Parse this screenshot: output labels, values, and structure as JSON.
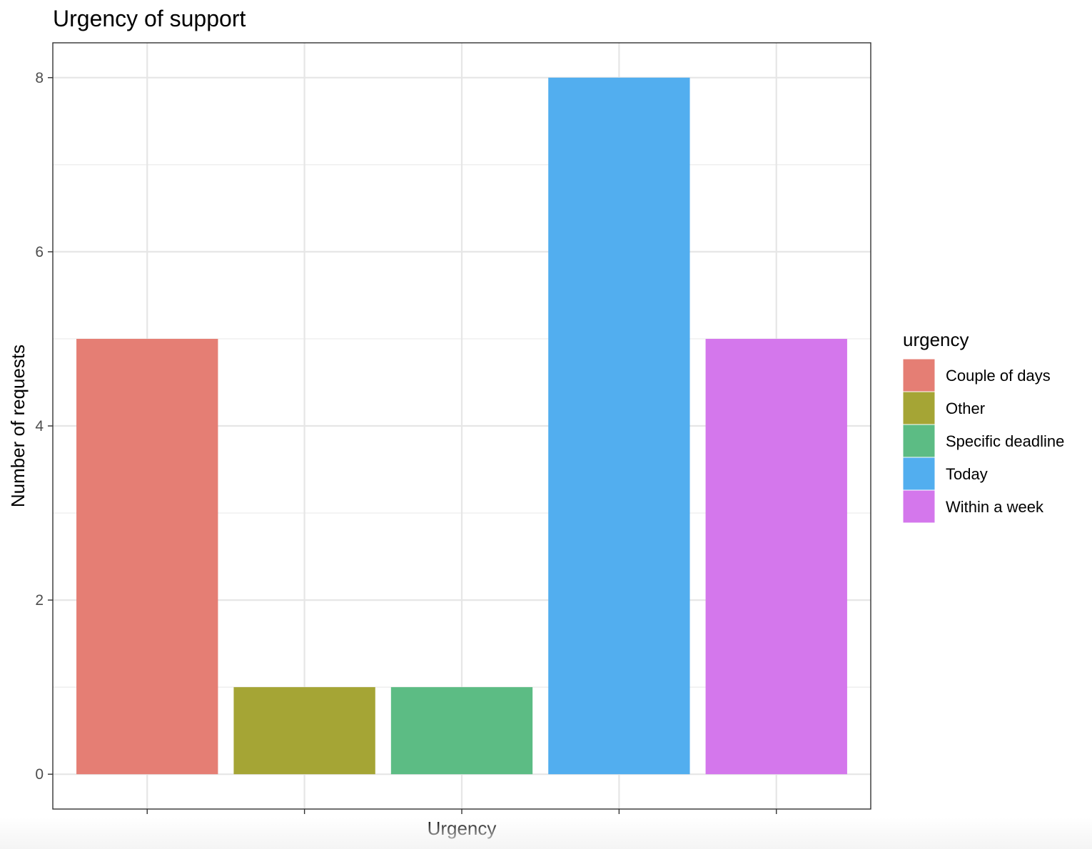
{
  "chart_data": {
    "type": "bar",
    "title": "Urgency of support",
    "xlabel": "Urgency",
    "ylabel": "Number of requests",
    "categories": [
      "Couple of days",
      "Other",
      "Specific deadline",
      "Today",
      "Within a week"
    ],
    "values": [
      5,
      1,
      1,
      8,
      5
    ],
    "colors": [
      "#E57E74",
      "#A5A535",
      "#5CBC84",
      "#52AEEF",
      "#D477EC"
    ],
    "ylim": [
      -0.4,
      8.4
    ],
    "yticks": [
      0,
      2,
      4,
      6,
      8
    ],
    "show_x_tick_labels": false,
    "grid": true,
    "legend": {
      "title": "urgency",
      "position": "right"
    }
  }
}
